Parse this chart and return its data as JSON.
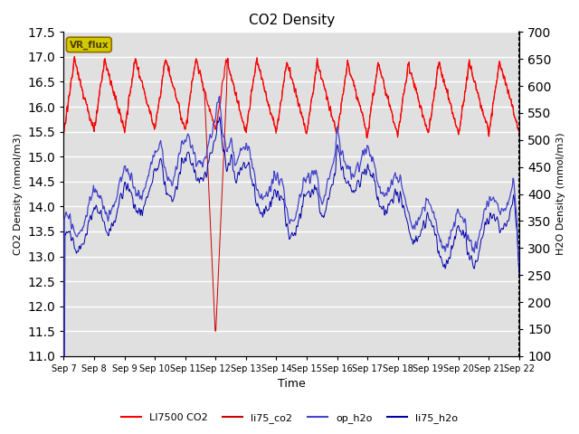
{
  "title": "CO2 Density",
  "xlabel": "Time",
  "ylabel_left": "CO2 Density (mmol/m3)",
  "ylabel_right": "H2O Density (mmol/m3)",
  "ylim_left": [
    11.0,
    17.5
  ],
  "ylim_right": [
    100,
    700
  ],
  "yticks_left": [
    11.0,
    11.5,
    12.0,
    12.5,
    13.0,
    13.5,
    14.0,
    14.5,
    15.0,
    15.5,
    16.0,
    16.5,
    17.0,
    17.5
  ],
  "yticks_right": [
    100,
    150,
    200,
    250,
    300,
    350,
    400,
    450,
    500,
    550,
    600,
    650,
    700
  ],
  "xtick_labels": [
    "Sep 7",
    "Sep 8",
    "Sep 9",
    "Sep 10",
    "Sep 11",
    "Sep 12",
    "Sep 13",
    "Sep 14",
    "Sep 15",
    "Sep 16",
    "Sep 17",
    "Sep 18",
    "Sep 19",
    "Sep 20",
    "Sep 21",
    "Sep 22"
  ],
  "li7500_color": "#ff0000",
  "li75_co2_color": "#cc0000",
  "op_h2o_color": "#4444cc",
  "li75_h2o_color": "#0000aa",
  "vr_flux_box_facecolor": "#cccc00",
  "vr_flux_box_edgecolor": "#996600",
  "background_gray": "#e0e0e0",
  "grid_color": "#ffffff",
  "figsize": [
    6.4,
    4.8
  ],
  "dpi": 100
}
